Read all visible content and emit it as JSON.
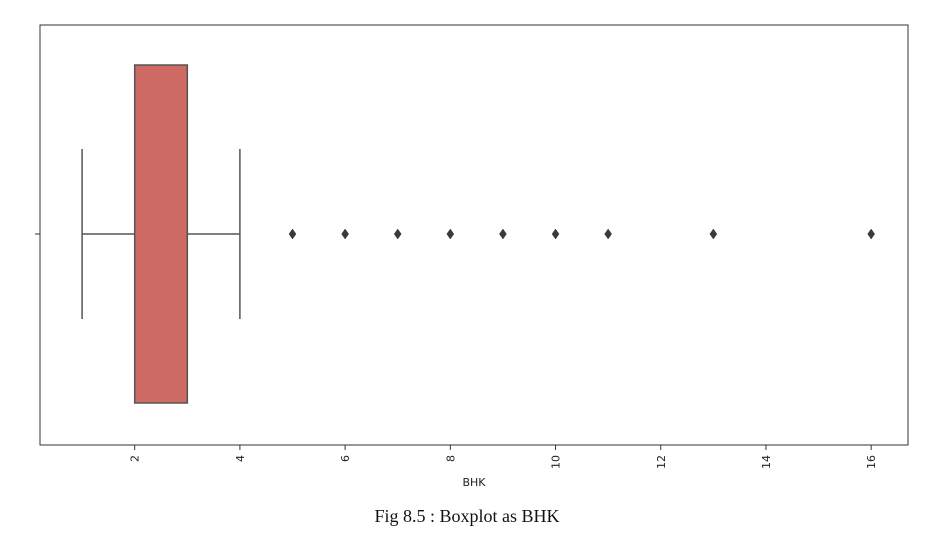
{
  "caption": "Fig 8.5 : Boxplot as  BHK",
  "chart_data": {
    "type": "box",
    "orientation": "horizontal",
    "xlabel": "BHK",
    "ylabel": "",
    "xlim": [
      0.2,
      16.7
    ],
    "xticks": [
      2,
      4,
      6,
      8,
      10,
      12,
      14,
      16
    ],
    "xtick_labels": [
      "2",
      "4",
      "6",
      "8",
      "10",
      "12",
      "14",
      "16"
    ],
    "tick_label_rotation": "vertical",
    "grid": false,
    "box": {
      "whisker_low": 1,
      "q1": 2,
      "median": 3,
      "q3": 3,
      "whisker_high": 4,
      "fill_color": "#cd6a63",
      "line_color": "#555555"
    },
    "outliers": [
      5,
      6,
      7,
      8,
      9,
      10,
      11,
      13,
      16
    ]
  }
}
